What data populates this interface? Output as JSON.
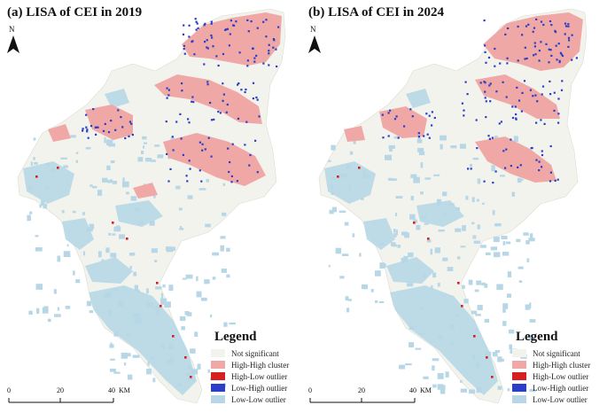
{
  "panels": [
    {
      "title": "(a) LISA of CEI in 2019"
    },
    {
      "title": "(b) LISA of CEI in 2024"
    }
  ],
  "north_arrow": {
    "label": "N"
  },
  "legend": {
    "title": "Legend",
    "items": [
      {
        "label": "Not significant",
        "color": "#f3f3ee"
      },
      {
        "label": "High-High cluster",
        "color": "#f0a8a6"
      },
      {
        "label": "High-Low outlier",
        "color": "#d42020"
      },
      {
        "label": "Low-High outlier",
        "color": "#2a3fc6"
      },
      {
        "label": "Low-Low outlier",
        "color": "#b7d7e6"
      }
    ]
  },
  "scale_bar": {
    "ticks": [
      "0",
      "20",
      "40"
    ],
    "unit": "KM"
  }
}
